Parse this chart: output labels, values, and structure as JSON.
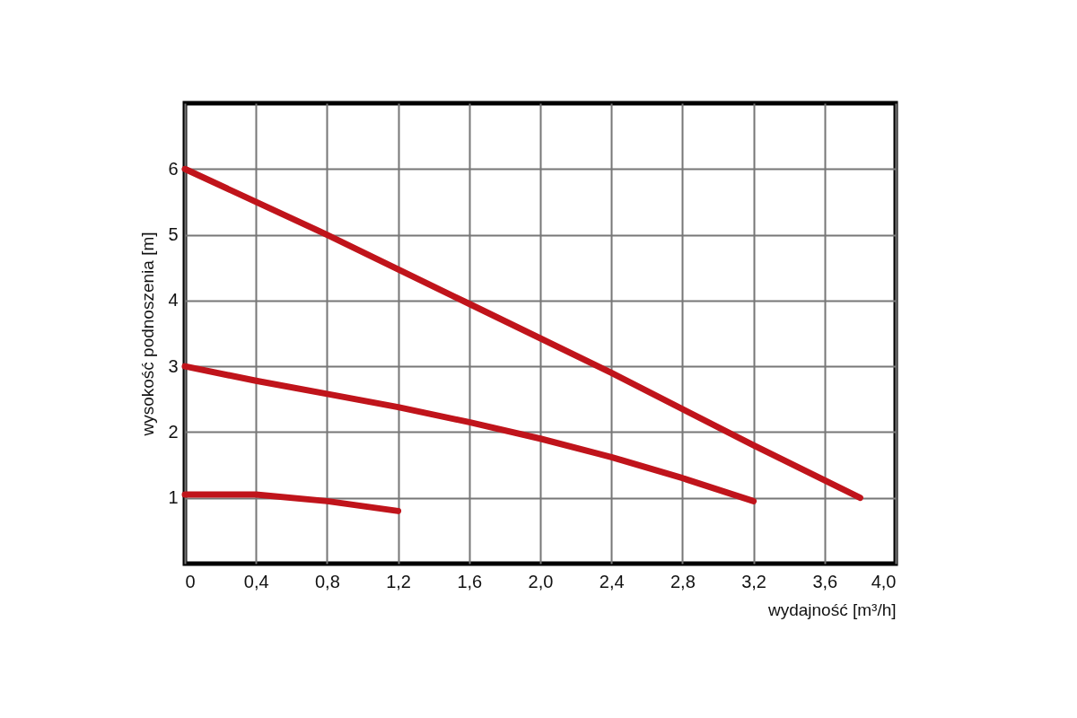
{
  "chart_data": {
    "type": "line",
    "xlabel": "wydajność [m³/h]",
    "ylabel": "wysokość podnoszenia [m]",
    "xlim": [
      0,
      4.0
    ],
    "ylim": [
      0,
      7
    ],
    "xticks": [
      0,
      {
        "value": 0.4,
        "label": "0,4"
      },
      {
        "value": 0.8,
        "label": "0,8"
      },
      {
        "value": 1.2,
        "label": "1,2"
      },
      {
        "value": 1.6,
        "label": "1,6"
      },
      {
        "value": 2.0,
        "label": "2,0"
      },
      {
        "value": 2.4,
        "label": "2,4"
      },
      {
        "value": 2.8,
        "label": "2,8"
      },
      {
        "value": 3.2,
        "label": "3,2"
      },
      {
        "value": 3.6,
        "label": "3,6"
      },
      {
        "value": 4.0,
        "label": "4,0"
      }
    ],
    "yticks": [
      1,
      2,
      3,
      4,
      5,
      6
    ],
    "grid": true,
    "line_style": "solid",
    "series": [
      {
        "color": "#c0141b",
        "x": [
          0,
          0.8,
          1.6,
          2.4,
          3.2,
          3.8
        ],
        "values": [
          6,
          5.0,
          3.95,
          2.9,
          1.8,
          1.0
        ]
      },
      {
        "color": "#c0141b",
        "x": [
          0,
          0.4,
          0.8,
          1.2,
          1.6,
          2.0,
          2.4,
          2.8,
          3.2
        ],
        "values": [
          3,
          2.78,
          2.58,
          2.38,
          2.15,
          1.9,
          1.62,
          1.3,
          0.95
        ]
      },
      {
        "color": "#c0141b",
        "x": [
          0,
          0.4,
          0.8,
          1.2
        ],
        "values": [
          1.05,
          1.05,
          0.95,
          0.8
        ]
      }
    ]
  }
}
